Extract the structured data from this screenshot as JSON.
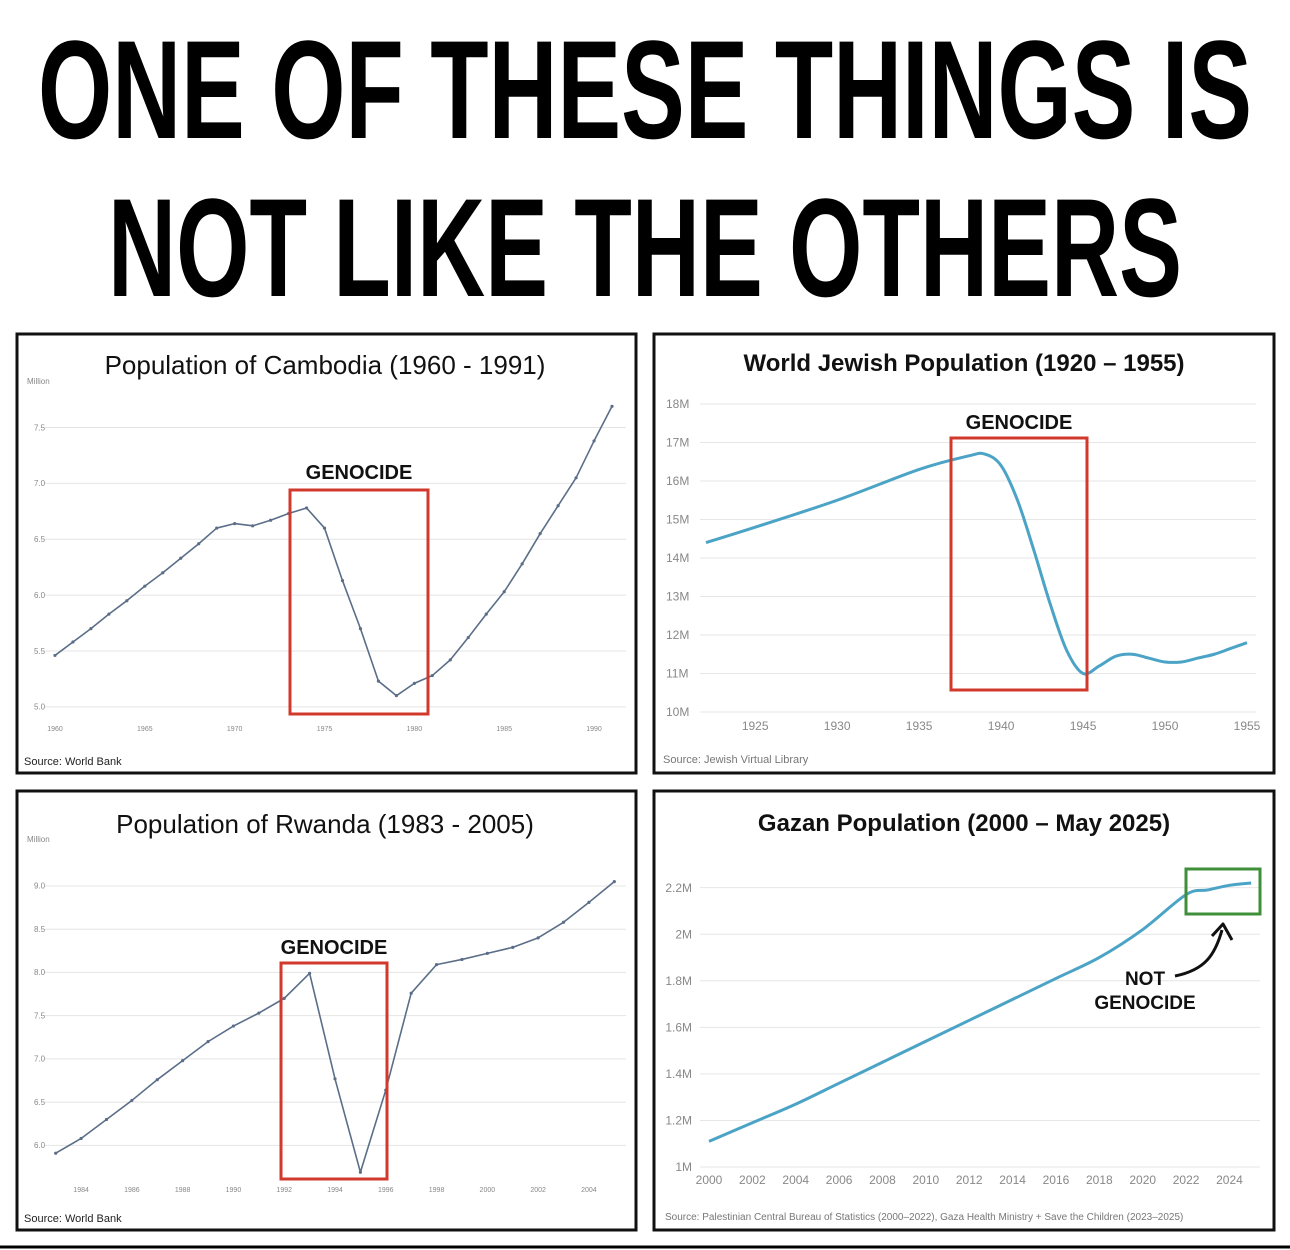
{
  "title": [
    "ONE OF THESE THINGS IS",
    "NOT LIKE THE OTHERS"
  ],
  "chart_data": [
    {
      "type": "line",
      "title": "Population of Cambodia (1960 - 1991)",
      "y_unit": "Million",
      "source": "Source: World Bank",
      "x": [
        1960,
        1961,
        1962,
        1963,
        1964,
        1965,
        1966,
        1967,
        1968,
        1969,
        1970,
        1971,
        1972,
        1973,
        1974,
        1975,
        1976,
        1977,
        1978,
        1979,
        1980,
        1981,
        1982,
        1983,
        1984,
        1985,
        1986,
        1987,
        1988,
        1989,
        1990,
        1991
      ],
      "values": [
        5.46,
        5.58,
        5.7,
        5.83,
        5.95,
        6.08,
        6.2,
        6.33,
        6.46,
        6.6,
        6.64,
        6.62,
        6.67,
        6.73,
        6.78,
        6.6,
        6.13,
        5.7,
        5.23,
        5.1,
        5.21,
        5.28,
        5.42,
        5.62,
        5.83,
        6.03,
        6.28,
        6.55,
        6.8,
        7.05,
        7.38,
        7.69
      ],
      "color": "#5b6e88",
      "markers": true,
      "smooth": false,
      "xlim": [
        1959.5,
        1991.5
      ],
      "ylim": [
        4.9,
        7.8
      ],
      "xticks": [
        1960,
        1965,
        1970,
        1975,
        1980,
        1985,
        1990
      ],
      "yticks": [
        {
          "value": 5,
          "label": "5.0"
        },
        5.5,
        {
          "value": 6,
          "label": "6.0"
        },
        6.5,
        {
          "value": 7,
          "label": "7.0"
        },
        7.5
      ],
      "annotation": "GENOCIDE"
    },
    {
      "type": "line",
      "title": "World Jewish Population (1920 – 1955)",
      "source": "Source: Jewish Virtual Library",
      "x": [
        1922,
        1925,
        1930,
        1935,
        1938,
        1939,
        1940,
        1941,
        1942,
        1943,
        1944,
        1945,
        1946,
        1947,
        1948,
        1949,
        1950,
        1951,
        1952,
        1953,
        1954,
        1955
      ],
      "values": [
        14.4,
        14.8,
        15.5,
        16.3,
        16.65,
        16.7,
        16.4,
        15.5,
        14.2,
        12.8,
        11.6,
        11.0,
        11.2,
        11.45,
        11.5,
        11.4,
        11.3,
        11.3,
        11.4,
        11.5,
        11.65,
        11.8
      ],
      "color": "#4ba3c6",
      "markers": false,
      "smooth": true,
      "xlim": [
        1922,
        1955
      ],
      "ylim": [
        10,
        18
      ],
      "xticks": [
        1925,
        1930,
        1935,
        1940,
        1945,
        1950,
        1955
      ],
      "yticks": [
        {
          "value": 10,
          "label": "10M"
        },
        {
          "value": 11,
          "label": "11M"
        },
        {
          "value": 12,
          "label": "12M"
        },
        {
          "value": 13,
          "label": "13M"
        },
        {
          "value": 14,
          "label": "14M"
        },
        {
          "value": 15,
          "label": "15M"
        },
        {
          "value": 16,
          "label": "16M"
        },
        {
          "value": 17,
          "label": "17M"
        },
        {
          "value": 18,
          "label": "18M"
        }
      ],
      "annotation": "GENOCIDE"
    },
    {
      "type": "line",
      "title": "Population of Rwanda (1983 - 2005)",
      "y_unit": "Million",
      "source": "Source: World Bank",
      "x": [
        1983,
        1984,
        1985,
        1986,
        1987,
        1988,
        1989,
        1990,
        1991,
        1992,
        1993,
        1994,
        1995,
        1996,
        1997,
        1998,
        1999,
        2000,
        2001,
        2002,
        2003,
        2004,
        2005
      ],
      "values": [
        5.91,
        6.08,
        6.3,
        6.52,
        6.76,
        6.98,
        7.2,
        7.38,
        7.53,
        7.7,
        7.99,
        6.77,
        5.69,
        6.64,
        7.76,
        8.09,
        8.15,
        8.22,
        8.29,
        8.4,
        8.58,
        8.81,
        9.05
      ],
      "color": "#5b6e88",
      "markers": true,
      "smooth": false,
      "xlim": [
        1982.5,
        2005.5
      ],
      "ylim": [
        5.6,
        9.3
      ],
      "xticks": [
        1984,
        1986,
        1988,
        1990,
        1992,
        1994,
        1996,
        1998,
        2000,
        2002,
        2004
      ],
      "yticks": [
        {
          "value": 6,
          "label": "6.0"
        },
        6.5,
        {
          "value": 7,
          "label": "7.0"
        },
        7.5,
        {
          "value": 8,
          "label": "8.0"
        },
        8.5,
        {
          "value": 9,
          "label": "9.0"
        }
      ],
      "annotation": "GENOCIDE"
    },
    {
      "type": "line",
      "title": "Gazan Population (2000 – May 2025)",
      "source": "Source: Palestinian Central Bureau of Statistics (2000–2022), Gaza Health Ministry + Save the Children (2023–2025)",
      "x": [
        2000,
        2002,
        2004,
        2006,
        2008,
        2010,
        2012,
        2014,
        2016,
        2018,
        2020,
        2022,
        2023,
        2024,
        2025
      ],
      "values": [
        1.11,
        1.19,
        1.27,
        1.36,
        1.45,
        1.54,
        1.63,
        1.72,
        1.81,
        1.9,
        2.02,
        2.17,
        2.19,
        2.21,
        2.22
      ],
      "color": "#4ba3c6",
      "markers": false,
      "smooth": true,
      "xlim": [
        2000,
        2025.5
      ],
      "ylim": [
        1,
        2.28
      ],
      "xticks": [
        2000,
        2002,
        2004,
        2006,
        2008,
        2010,
        2012,
        2014,
        2016,
        2018,
        2020,
        2022,
        2024
      ],
      "yticks": [
        {
          "value": 1,
          "label": "1M"
        },
        {
          "value": 1.2,
          "label": "1.2M"
        },
        {
          "value": 1.4,
          "label": "1.4M"
        },
        {
          "value": 1.6,
          "label": "1.6M"
        },
        {
          "value": 1.8,
          "label": "1.8M"
        },
        {
          "value": 2,
          "label": "2M"
        },
        {
          "value": 2.2,
          "label": "2.2M"
        }
      ],
      "annotation_lines": [
        "NOT",
        "GENOCIDE"
      ]
    }
  ]
}
